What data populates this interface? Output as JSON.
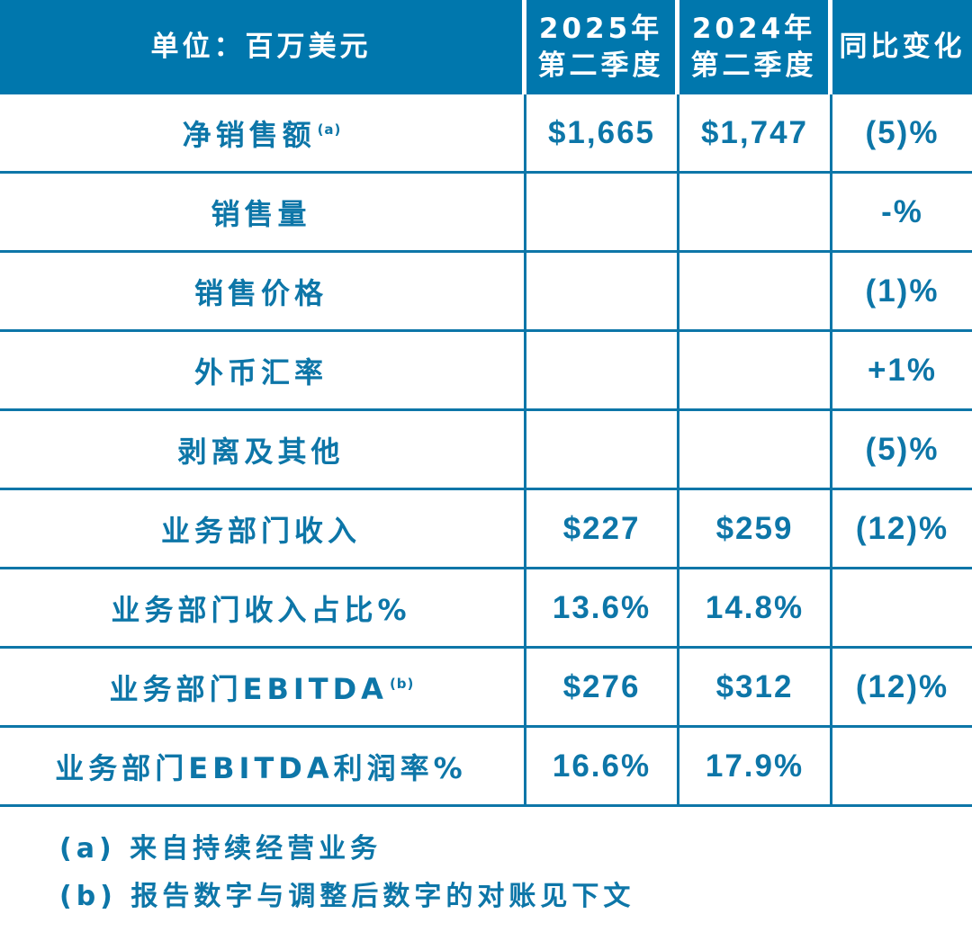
{
  "colors": {
    "header_background": "#0077AD",
    "accent_text": "#0D76A8",
    "grid_line": "#0D76A8",
    "background": "#FFFFFF"
  },
  "chart_data": {
    "type": "table",
    "title": "单位：百万美元",
    "columns": [
      "单位：百万美元",
      "2025年\n第二季度",
      "2024年\n第二季度",
      "同比变化"
    ],
    "rows": [
      {
        "label": "净销售额",
        "sup": "(a)",
        "values": [
          "$1,665",
          "$1,747",
          "(5)%"
        ]
      },
      {
        "label": "销售量",
        "sup": "",
        "values": [
          "",
          "",
          "-%"
        ]
      },
      {
        "label": "销售价格",
        "sup": "",
        "values": [
          "",
          "",
          "(1)%"
        ]
      },
      {
        "label": "外币汇率",
        "sup": "",
        "values": [
          "",
          "",
          "+1%"
        ]
      },
      {
        "label": "剥离及其他",
        "sup": "",
        "values": [
          "",
          "",
          "(5)%"
        ]
      },
      {
        "label": "业务部门收入",
        "sup": "",
        "values": [
          "$227",
          "$259",
          "(12)%"
        ]
      },
      {
        "label": "业务部门收入占比%",
        "sup": "",
        "values": [
          "13.6%",
          "14.8%",
          ""
        ]
      },
      {
        "label": "业务部门EBITDA",
        "sup": "(b)",
        "values": [
          "$276",
          "$312",
          "(12)%"
        ]
      },
      {
        "label": "业务部门EBITDA利润率%",
        "sup": "",
        "values": [
          "16.6%",
          "17.9%",
          ""
        ]
      }
    ],
    "footnotes": [
      "(a) 来自持续经营业务",
      "(b) 报告数字与调整后数字的对账见下文"
    ],
    "layout": {
      "grid": "on",
      "header_style": "solid-fill"
    }
  }
}
